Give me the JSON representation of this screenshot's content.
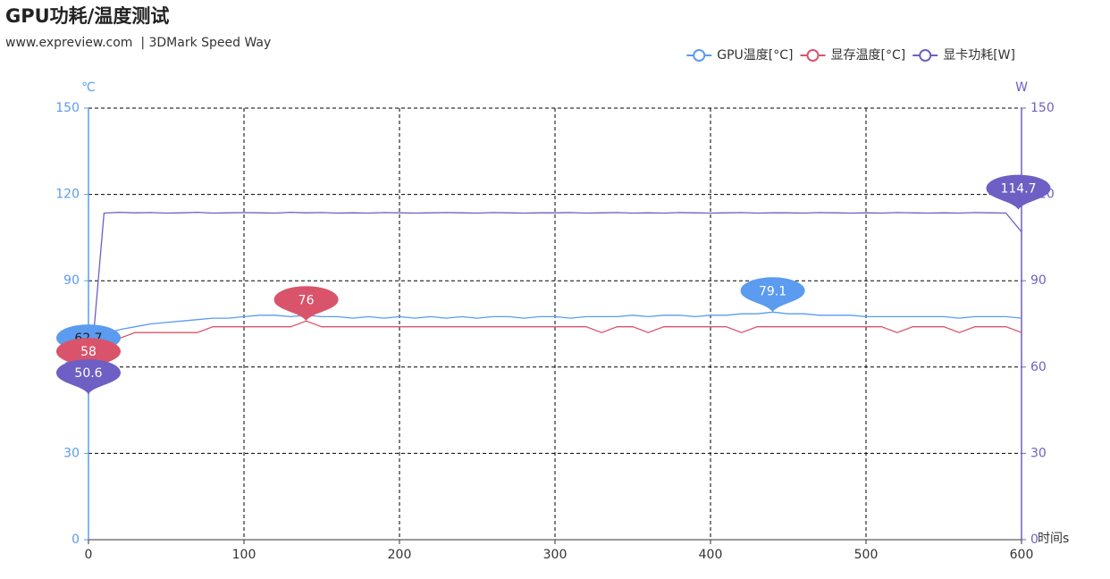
{
  "chart_data": {
    "type": "line",
    "title": "GPU功耗/温度测试",
    "subtitle": "www.expreview.com  | 3DMark Speed Way",
    "y_label": "℃",
    "y2_label": "W",
    "x_label": "时间s",
    "x": [
      0,
      10,
      20,
      30,
      40,
      50,
      60,
      70,
      80,
      90,
      100,
      110,
      120,
      130,
      140,
      150,
      160,
      170,
      180,
      190,
      200,
      210,
      220,
      230,
      240,
      250,
      260,
      270,
      280,
      290,
      300,
      310,
      320,
      330,
      340,
      350,
      360,
      370,
      380,
      390,
      400,
      410,
      420,
      430,
      440,
      450,
      460,
      470,
      480,
      490,
      500,
      510,
      520,
      530,
      540,
      550,
      560,
      570,
      580,
      590,
      600
    ],
    "xlim": [
      0,
      600
    ],
    "xticks": [
      0,
      100,
      200,
      300,
      400,
      500,
      600
    ],
    "ylim": [
      0,
      150
    ],
    "yticks": [
      0,
      30,
      60,
      90,
      120,
      150
    ],
    "y2lim": [
      0,
      150
    ],
    "y2ticks": [
      0,
      30,
      60,
      90,
      120,
      150
    ],
    "grid": true,
    "legend": "top-right",
    "series": [
      {
        "name": "GPU温度[°C]",
        "color": "#5b9bf0",
        "axis": "y",
        "values": [
          62.7,
          71.5,
          73,
          74,
          75,
          75.5,
          76,
          76.5,
          77,
          77,
          77.5,
          78,
          78,
          77.5,
          78,
          77.5,
          77.5,
          77,
          77.5,
          77,
          77.5,
          77,
          77.5,
          77,
          77.5,
          77,
          77.5,
          77.5,
          77,
          77.5,
          77.5,
          77,
          77.5,
          77.5,
          77.5,
          78,
          77.5,
          78,
          78,
          77.5,
          78,
          78,
          78.5,
          78.5,
          79.1,
          78.5,
          78.5,
          78,
          78,
          78,
          77.5,
          77.5,
          77.5,
          77.5,
          77.5,
          77.5,
          77,
          77.5,
          77.5,
          77.5,
          77
        ],
        "mark_points": [
          {
            "x": 0,
            "value": 62.7
          },
          {
            "x": 440,
            "value": 79.1
          }
        ]
      },
      {
        "name": "显存温度[°C]",
        "color": "#d9546a",
        "axis": "y",
        "values": [
          58,
          68,
          70,
          72,
          72,
          72,
          72,
          72,
          74,
          74,
          74,
          74,
          74,
          74,
          76,
          74,
          74,
          74,
          74,
          74,
          74,
          74,
          74,
          74,
          74,
          74,
          74,
          74,
          74,
          74,
          74,
          74,
          74,
          72,
          74,
          74,
          72,
          74,
          74,
          74,
          74,
          74,
          72,
          74,
          74,
          74,
          74,
          74,
          74,
          74,
          74,
          74,
          72,
          74,
          74,
          74,
          72,
          74,
          74,
          74,
          72
        ],
        "mark_points": [
          {
            "x": 0,
            "value": 58
          },
          {
            "x": 140,
            "value": 76
          }
        ]
      },
      {
        "name": "显卡功耗[W]",
        "color": "#6e5fc4",
        "axis": "y2",
        "values": [
          50.6,
          113.5,
          113.8,
          113.6,
          113.7,
          113.5,
          113.6,
          113.8,
          113.5,
          113.6,
          113.7,
          113.6,
          113.5,
          113.8,
          113.6,
          113.7,
          113.5,
          113.6,
          113.5,
          113.7,
          113.6,
          113.5,
          113.6,
          113.7,
          113.6,
          113.5,
          113.7,
          113.6,
          113.5,
          113.6,
          113.6,
          113.7,
          113.5,
          113.6,
          113.7,
          113.5,
          113.6,
          113.5,
          113.7,
          113.6,
          113.5,
          113.6,
          113.7,
          113.5,
          113.6,
          113.6,
          113.5,
          113.7,
          113.6,
          113.5,
          113.6,
          113.5,
          113.7,
          113.6,
          113.5,
          113.6,
          113.5,
          113.7,
          113.6,
          113.5,
          107
        ],
        "mark_points": [
          {
            "x": 0,
            "value": 50.6
          },
          {
            "x": 598,
            "value": 114.7
          }
        ]
      }
    ]
  }
}
